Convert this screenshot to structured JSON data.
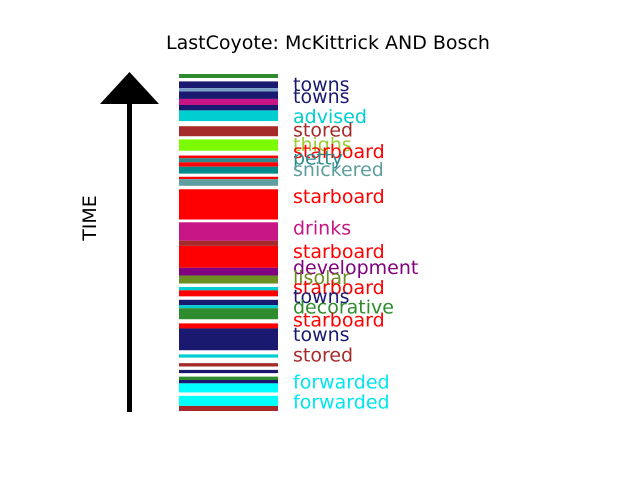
{
  "chart_data": {
    "type": "bar",
    "title": "LastCoyote: McKittrick AND Bosch",
    "ylabel": "TIME",
    "segments": [
      {
        "start": 0.0,
        "end": 0.012,
        "color": "#2e8b2e"
      },
      {
        "start": 0.012,
        "end": 0.022,
        "color": "#ffffff"
      },
      {
        "start": 0.022,
        "end": 0.042,
        "color": "#191970"
      },
      {
        "start": 0.042,
        "end": 0.052,
        "color": "#7aa0c8"
      },
      {
        "start": 0.052,
        "end": 0.074,
        "color": "#191970"
      },
      {
        "start": 0.074,
        "end": 0.092,
        "color": "#c71585"
      },
      {
        "start": 0.092,
        "end": 0.108,
        "color": "#191970"
      },
      {
        "start": 0.108,
        "end": 0.14,
        "color": "#00ced1"
      },
      {
        "start": 0.14,
        "end": 0.155,
        "color": "#ffffff"
      },
      {
        "start": 0.155,
        "end": 0.185,
        "color": "#a52a2a"
      },
      {
        "start": 0.185,
        "end": 0.194,
        "color": "#ffffff"
      },
      {
        "start": 0.194,
        "end": 0.228,
        "color": "#7cfc00"
      },
      {
        "start": 0.228,
        "end": 0.242,
        "color": "#ffffff"
      },
      {
        "start": 0.242,
        "end": 0.25,
        "color": "#ff0000"
      },
      {
        "start": 0.25,
        "end": 0.262,
        "color": "#2e8b8b"
      },
      {
        "start": 0.262,
        "end": 0.275,
        "color": "#ff0000"
      },
      {
        "start": 0.275,
        "end": 0.296,
        "color": "#008b8b"
      },
      {
        "start": 0.296,
        "end": 0.305,
        "color": "#ffffff"
      },
      {
        "start": 0.305,
        "end": 0.312,
        "color": "#ff0000"
      },
      {
        "start": 0.312,
        "end": 0.332,
        "color": "#5f9ea0"
      },
      {
        "start": 0.332,
        "end": 0.342,
        "color": "#ffffff"
      },
      {
        "start": 0.342,
        "end": 0.432,
        "color": "#ff0000"
      },
      {
        "start": 0.432,
        "end": 0.44,
        "color": "#ffffff"
      },
      {
        "start": 0.44,
        "end": 0.495,
        "color": "#c71585"
      },
      {
        "start": 0.495,
        "end": 0.51,
        "color": "#a52a2a"
      },
      {
        "start": 0.51,
        "end": 0.575,
        "color": "#ff0000"
      },
      {
        "start": 0.575,
        "end": 0.598,
        "color": "#800080"
      },
      {
        "start": 0.598,
        "end": 0.622,
        "color": "#6b8e23"
      },
      {
        "start": 0.622,
        "end": 0.632,
        "color": "#ffffff"
      },
      {
        "start": 0.632,
        "end": 0.642,
        "color": "#00ced1"
      },
      {
        "start": 0.642,
        "end": 0.66,
        "color": "#ff0000"
      },
      {
        "start": 0.66,
        "end": 0.67,
        "color": "#ffffff"
      },
      {
        "start": 0.67,
        "end": 0.686,
        "color": "#191970"
      },
      {
        "start": 0.686,
        "end": 0.695,
        "color": "#00ced1"
      },
      {
        "start": 0.695,
        "end": 0.728,
        "color": "#2e8b2e"
      },
      {
        "start": 0.728,
        "end": 0.74,
        "color": "#ffffff"
      },
      {
        "start": 0.74,
        "end": 0.755,
        "color": "#ff0000"
      },
      {
        "start": 0.755,
        "end": 0.82,
        "color": "#191970"
      },
      {
        "start": 0.82,
        "end": 0.832,
        "color": "#ffffff"
      },
      {
        "start": 0.832,
        "end": 0.842,
        "color": "#00ced1"
      },
      {
        "start": 0.842,
        "end": 0.858,
        "color": "#ffffff"
      },
      {
        "start": 0.858,
        "end": 0.868,
        "color": "#a52a2a"
      },
      {
        "start": 0.868,
        "end": 0.878,
        "color": "#ffffff"
      },
      {
        "start": 0.878,
        "end": 0.888,
        "color": "#191970"
      },
      {
        "start": 0.888,
        "end": 0.898,
        "color": "#ffffff"
      },
      {
        "start": 0.898,
        "end": 0.908,
        "color": "#2e8b2e"
      },
      {
        "start": 0.908,
        "end": 0.918,
        "color": "#191970"
      },
      {
        "start": 0.918,
        "end": 0.945,
        "color": "#00ffff"
      },
      {
        "start": 0.945,
        "end": 0.955,
        "color": "#ffffff"
      },
      {
        "start": 0.955,
        "end": 0.985,
        "color": "#00ffff"
      },
      {
        "start": 0.985,
        "end": 1.0,
        "color": "#a52a2a"
      }
    ],
    "labels": [
      {
        "text": "towns",
        "pos": 0.03,
        "color": "#191970"
      },
      {
        "text": "towns",
        "pos": 0.066,
        "color": "#191970"
      },
      {
        "text": "advised",
        "pos": 0.125,
        "color": "#00ced1"
      },
      {
        "text": "stored",
        "pos": 0.165,
        "color": "#a52a2a"
      },
      {
        "text": "thighs",
        "pos": 0.208,
        "color": "#9acd32"
      },
      {
        "text": "starboard",
        "pos": 0.228,
        "color": "#ff0000"
      },
      {
        "text": "petty",
        "pos": 0.248,
        "color": "#2e8b8b"
      },
      {
        "text": "snickered",
        "pos": 0.282,
        "color": "#5f9ea0"
      },
      {
        "text": "starboard",
        "pos": 0.362,
        "color": "#ff0000"
      },
      {
        "text": "drinks",
        "pos": 0.455,
        "color": "#c71585"
      },
      {
        "text": "starboard",
        "pos": 0.525,
        "color": "#ff0000"
      },
      {
        "text": "development",
        "pos": 0.572,
        "color": "#800080"
      },
      {
        "text": "lisolar",
        "pos": 0.602,
        "color": "#6b8e23"
      },
      {
        "text": "starboard",
        "pos": 0.632,
        "color": "#ff0000"
      },
      {
        "text": "towns",
        "pos": 0.658,
        "color": "#191970"
      },
      {
        "text": "decorative",
        "pos": 0.69,
        "color": "#2e8b2e"
      },
      {
        "text": "starboard",
        "pos": 0.728,
        "color": "#ff0000"
      },
      {
        "text": "towns",
        "pos": 0.772,
        "color": "#191970"
      },
      {
        "text": "stored",
        "pos": 0.832,
        "color": "#a52a2a"
      },
      {
        "text": "forwarded",
        "pos": 0.912,
        "color": "#00e5ee"
      },
      {
        "text": "forwarded",
        "pos": 0.972,
        "color": "#00e5ee"
      }
    ]
  }
}
